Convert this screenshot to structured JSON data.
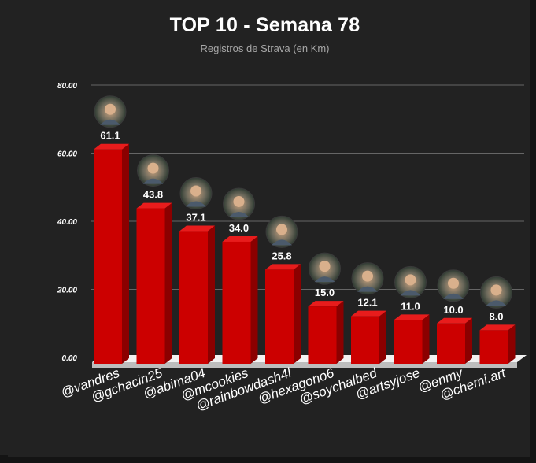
{
  "header": {
    "title": "TOP 10 - Semana 78",
    "subtitle": "Registros de Strava (en Km)"
  },
  "chart_data": {
    "type": "bar",
    "title": "TOP 10 - Semana 78",
    "subtitle": "Registros de Strava (en Km)",
    "categories": [
      "@vandres",
      "@gchacin25",
      "@abima04",
      "@mcookies",
      "@rainbowdash4l",
      "@hexagono6",
      "@soychalbed",
      "@artsyjose",
      "@enmy",
      "@chemi.art"
    ],
    "values": [
      61.1,
      43.8,
      37.1,
      34.0,
      25.8,
      15.0,
      12.1,
      11.0,
      10.0,
      8.0
    ],
    "value_labels": [
      "61.1",
      "43.8",
      "37.1",
      "34.0",
      "25.8",
      "15.0",
      "12.1",
      "11.0",
      "10.0",
      "8.0"
    ],
    "y_ticks": [
      "0.00",
      "20.00",
      "40.00",
      "60.00",
      "80.00"
    ],
    "ylim": [
      0,
      80
    ],
    "grid": true,
    "legend": "none",
    "avatars": true,
    "colors": {
      "bar_front": "#cc0000",
      "bar_side": "#8b0000",
      "bar_top": "#e81c1c",
      "background": "#222222",
      "grid": "#666666"
    }
  }
}
